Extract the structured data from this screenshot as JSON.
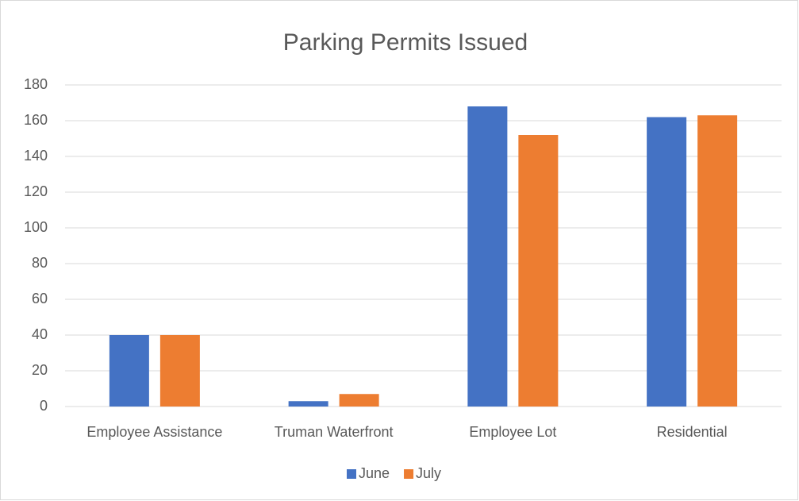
{
  "chart_data": {
    "type": "bar",
    "title": "Parking Permits Issued",
    "categories": [
      "Employee Assistance",
      "Truman Waterfront",
      "Employee Lot",
      "Residential"
    ],
    "series": [
      {
        "name": "June",
        "color": "#4472c4",
        "values": [
          40,
          3,
          168,
          162
        ]
      },
      {
        "name": "July",
        "color": "#ed7d31",
        "values": [
          40,
          7,
          152,
          163
        ]
      }
    ],
    "ylim": [
      0,
      180
    ],
    "yticks": [
      0,
      20,
      40,
      60,
      80,
      100,
      120,
      140,
      160,
      180
    ],
    "grid": true,
    "legend": "bottom"
  }
}
